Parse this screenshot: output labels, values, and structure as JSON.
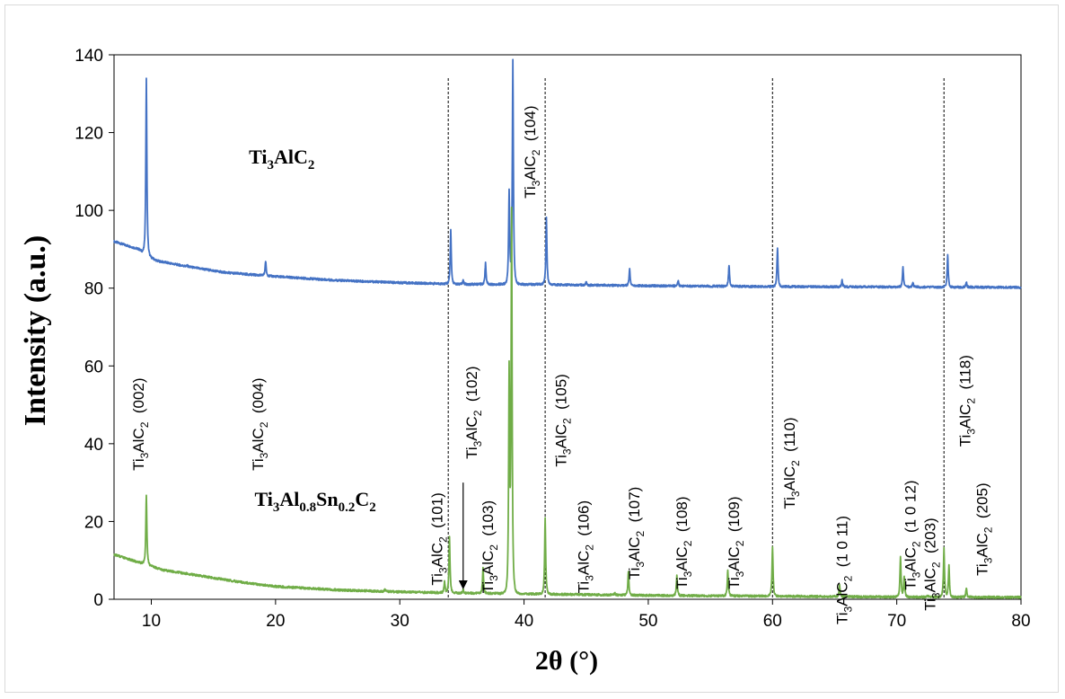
{
  "chart_data": {
    "type": "line",
    "xlabel": "2θ (°)",
    "ylabel": "Intensity (a.u.)",
    "xlim": [
      7,
      80
    ],
    "ylim": [
      0,
      140
    ],
    "xticks": [
      10,
      20,
      30,
      40,
      50,
      60,
      70,
      80
    ],
    "yticks": [
      0,
      20,
      40,
      60,
      80,
      100,
      120,
      140
    ],
    "grid": false,
    "legend": "none",
    "colors": {
      "top": "#4472c4",
      "bottom": "#70ad47"
    },
    "series": [
      {
        "id": "top",
        "baseline": [
          [
            7,
            92
          ],
          [
            9,
            90
          ],
          [
            9.5,
            88.5
          ],
          [
            10.5,
            87
          ],
          [
            13,
            85.5
          ],
          [
            16,
            84
          ],
          [
            20,
            83
          ],
          [
            25,
            82
          ],
          [
            30,
            81.4
          ],
          [
            35,
            81
          ],
          [
            40,
            81
          ],
          [
            50,
            80.6
          ],
          [
            60,
            80.4
          ],
          [
            70,
            80.3
          ],
          [
            80,
            80.2
          ]
        ],
        "peaks": [
          [
            9.6,
            134
          ],
          [
            12.9,
            85.8
          ],
          [
            19.2,
            87
          ],
          [
            34.1,
            95
          ],
          [
            35.1,
            82
          ],
          [
            36.9,
            86.5
          ],
          [
            38.8,
            105
          ],
          [
            39.1,
            138.5
          ],
          [
            41.8,
            98
          ],
          [
            45,
            81.5
          ],
          [
            48.5,
            85
          ],
          [
            52.4,
            82
          ],
          [
            56.5,
            86
          ],
          [
            60.4,
            90.5
          ],
          [
            65.6,
            82
          ],
          [
            70.5,
            85.5
          ],
          [
            71.3,
            81.6
          ],
          [
            74.1,
            88.5
          ],
          [
            75.6,
            81.5
          ]
        ]
      },
      {
        "id": "bottom",
        "baseline": [
          [
            7,
            11.5
          ],
          [
            8,
            10.5
          ],
          [
            9.5,
            9
          ],
          [
            11,
            7.5
          ],
          [
            14,
            6
          ],
          [
            17,
            4.5
          ],
          [
            20,
            3.3
          ],
          [
            25,
            2.4
          ],
          [
            30,
            1.9
          ],
          [
            35,
            1.6
          ],
          [
            40,
            1.4
          ],
          [
            50,
            1
          ],
          [
            60,
            0.8
          ],
          [
            70,
            0.6
          ],
          [
            80,
            0.5
          ]
        ],
        "peaks": [
          [
            9.6,
            27
          ],
          [
            28.8,
            2.5
          ],
          [
            33.6,
            4.5
          ],
          [
            34.0,
            16
          ],
          [
            35.1,
            2.5
          ],
          [
            36.7,
            8
          ],
          [
            38.8,
            57.5
          ],
          [
            39.0,
            98.5
          ],
          [
            41.7,
            21
          ],
          [
            47.3,
            1.6
          ],
          [
            48.4,
            7
          ],
          [
            52.3,
            6
          ],
          [
            56.4,
            7.5
          ],
          [
            60.0,
            13.5
          ],
          [
            65.4,
            3.5
          ],
          [
            70.3,
            11
          ],
          [
            70.6,
            6
          ],
          [
            72.5,
            1
          ],
          [
            73.8,
            13
          ],
          [
            74.2,
            9
          ],
          [
            75.6,
            2.8
          ]
        ]
      }
    ],
    "reference_lines": [
      33.9,
      41.7,
      60,
      73.8
    ],
    "sample_labels": [
      {
        "base": "Ti",
        "sub1": "3",
        "mid": "AlC",
        "sub2": "2",
        "x": 20.5,
        "y": 112
      },
      {
        "base": "Ti",
        "sub1": "3",
        "mid": "Al",
        "sub2": "0.8",
        "mid2": "Sn",
        "sub3": "0.2",
        "mid3": "C",
        "sub4": "2",
        "x": 23.2,
        "y": 24
      }
    ],
    "annotations": [
      {
        "text_ti": "Ti",
        "text_sub": "3",
        "text_al": "AlC",
        "text_sub2": "2",
        "hkl": "(002)",
        "x": 9.4,
        "y": 45
      },
      {
        "text_ti": "Ti",
        "text_sub": "3",
        "text_al": "AlC",
        "text_sub2": "2",
        "hkl": "(004)",
        "x": 19.0,
        "y": 45
      },
      {
        "text_ti": "Ti",
        "text_sub": "3",
        "text_al": "AlC",
        "text_sub2": "2",
        "hkl": "(101)",
        "x": 33.4,
        "y": 15.5
      },
      {
        "text_ti": "Ti",
        "text_sub": "3",
        "text_al": "AlC",
        "text_sub2": "2",
        "hkl": "(102)",
        "x": 36.2,
        "y": 48
      },
      {
        "text_ti": "Ti",
        "text_sub": "3",
        "text_al": "AlC",
        "text_sub2": "2",
        "hkl": "(103)",
        "x": 37.5,
        "y": 13.5
      },
      {
        "text_ti": "Ti",
        "text_sub": "3",
        "text_al": "AlC",
        "text_sub2": "2",
        "hkl": "(104)",
        "x": 40.9,
        "y": 115
      },
      {
        "text_ti": "Ti",
        "text_sub": "3",
        "text_al": "AlC",
        "text_sub2": "2",
        "hkl": "(105)",
        "x": 43.4,
        "y": 46
      },
      {
        "text_ti": "Ti",
        "text_sub": "3",
        "text_al": "AlC",
        "text_sub2": "2",
        "hkl": "(106)",
        "x": 45.2,
        "y": 13.5
      },
      {
        "text_ti": "Ti",
        "text_sub": "3",
        "text_al": "AlC",
        "text_sub2": "2",
        "hkl": "(107)",
        "x": 49.3,
        "y": 17
      },
      {
        "text_ti": "Ti",
        "text_sub": "3",
        "text_al": "AlC",
        "text_sub2": "2",
        "hkl": "(108)",
        "x": 53.1,
        "y": 14.5
      },
      {
        "text_ti": "Ti",
        "text_sub": "3",
        "text_al": "AlC",
        "text_sub2": "2",
        "hkl": "(109)",
        "x": 57.3,
        "y": 14.5
      },
      {
        "text_ti": "Ti",
        "text_sub": "3",
        "text_al": "AlC",
        "text_sub2": "2",
        "hkl": "(110)",
        "x": 61.8,
        "y": 35
      },
      {
        "text_ti": "Ti",
        "text_sub": "3",
        "text_al": "AlC",
        "text_sub2": "2",
        "hkl": "(1 0 11)",
        "x": 66.0,
        "y": 7.5
      },
      {
        "text_ti": "Ti",
        "text_sub": "3",
        "text_al": "AlC",
        "text_sub2": "2",
        "hkl": "(1 0 12)",
        "x": 71.5,
        "y": 16.5
      },
      {
        "text_ti": "Ti",
        "text_sub": "3",
        "text_al": "AlC",
        "text_sub2": "2",
        "hkl": "(203)",
        "x": 73.1,
        "y": 9
      },
      {
        "text_ti": "Ti",
        "text_sub": "3",
        "text_al": "AlC",
        "text_sub2": "2",
        "hkl": "(118)",
        "x": 75.9,
        "y": 51
      },
      {
        "text_ti": "Ti",
        "text_sub": "3",
        "text_al": "AlC",
        "text_sub2": "2",
        "hkl": "(205)",
        "x": 77.3,
        "y": 18
      }
    ],
    "arrow": {
      "from": [
        35.1,
        30
      ],
      "to": [
        35.1,
        3
      ]
    }
  }
}
